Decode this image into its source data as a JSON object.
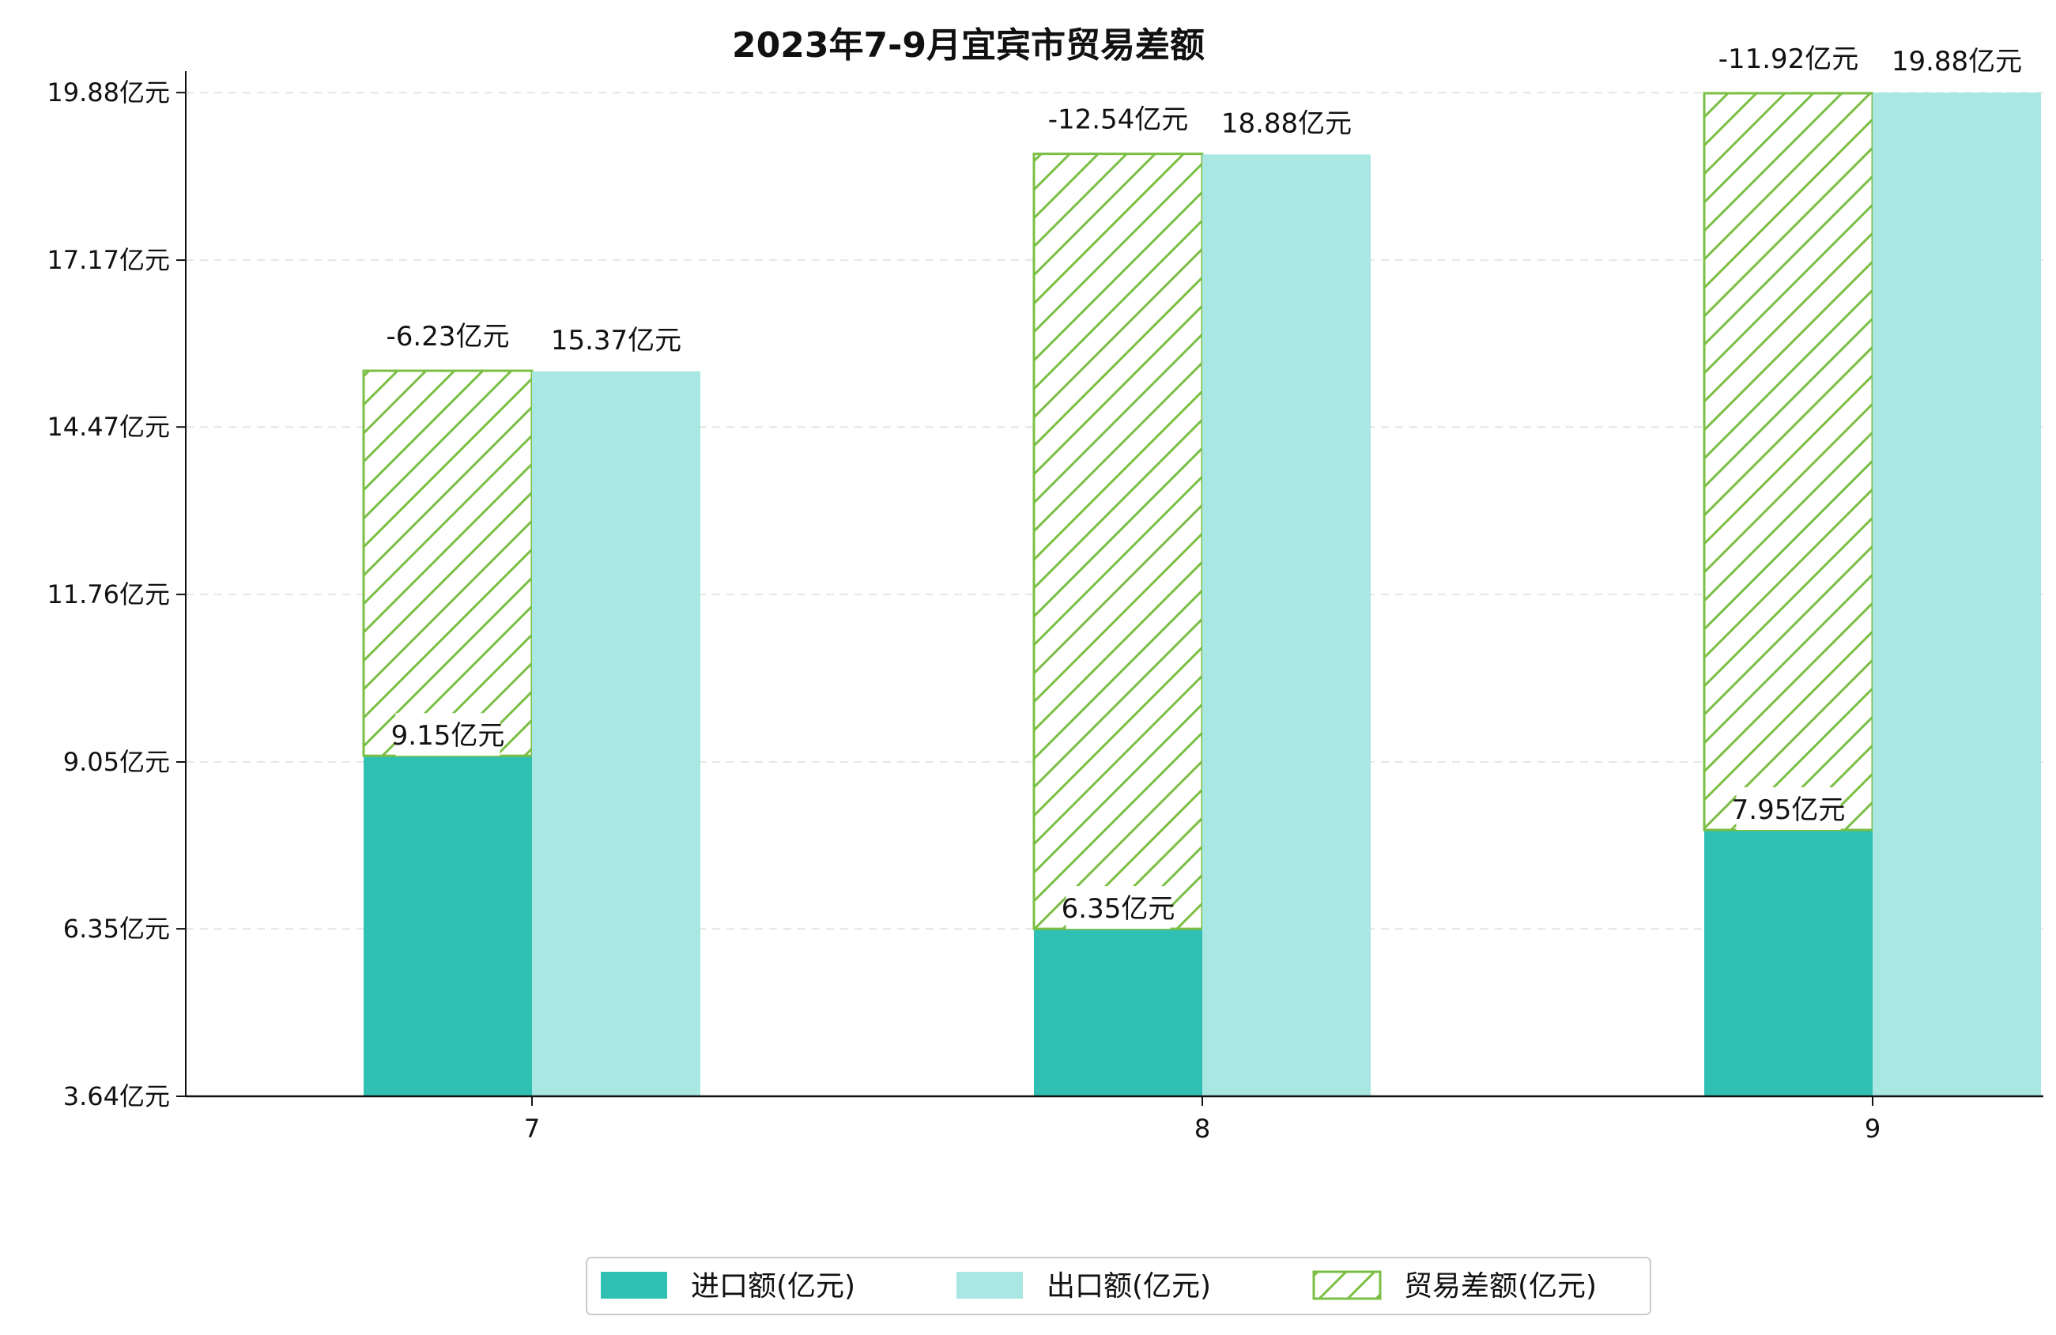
{
  "chart_data": {
    "type": "bar",
    "title": "2023年7-9月宜宾市贸易差额",
    "categories": [
      "7",
      "8",
      "9"
    ],
    "series": [
      {
        "name": "进口额(亿元)",
        "values": [
          9.15,
          6.35,
          7.95
        ],
        "labels": [
          "9.15亿元",
          "6.35亿元",
          "7.95亿元"
        ],
        "color": "#2fbfb3"
      },
      {
        "name": "出口额(亿元)",
        "values": [
          15.37,
          18.88,
          19.88
        ],
        "labels": [
          "15.37亿元",
          "18.88亿元",
          "19.88亿元"
        ],
        "color": "#a8e7e2"
      },
      {
        "name": "贸易差额(亿元)",
        "values": [
          -6.23,
          -12.54,
          -11.92
        ],
        "labels": [
          "-6.23亿元",
          "-12.54亿元",
          "-11.92亿元"
        ],
        "color": "#7bbf44",
        "stacked_on": "进口额(亿元)",
        "pattern": "hatch"
      }
    ],
    "yticks": [
      3.64,
      6.35,
      9.05,
      11.76,
      14.47,
      17.17,
      19.88
    ],
    "ytick_labels": [
      "3.64亿元",
      "6.35亿元",
      "9.05亿元",
      "11.76亿元",
      "14.47亿元",
      "17.17亿元",
      "19.88亿元"
    ],
    "ylim": [
      3.64,
      20.1
    ],
    "grid": "horizontal-dashed",
    "legend_position": "bottom-center"
  }
}
